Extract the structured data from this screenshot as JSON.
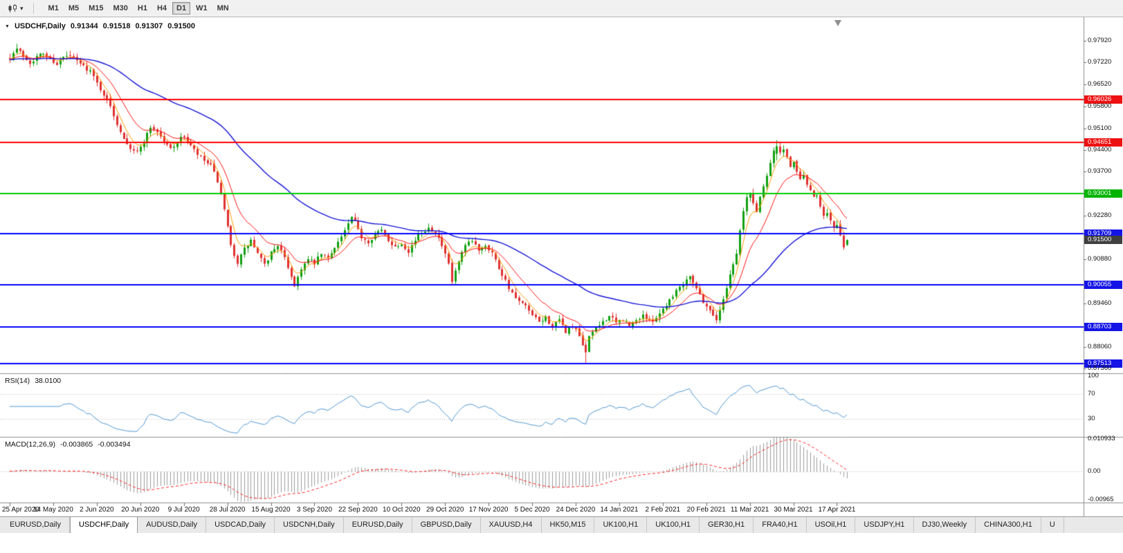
{
  "toolbar": {
    "timeframes": [
      {
        "label": "M1",
        "active": false
      },
      {
        "label": "M5",
        "active": false
      },
      {
        "label": "M15",
        "active": false
      },
      {
        "label": "M30",
        "active": false
      },
      {
        "label": "H1",
        "active": false
      },
      {
        "label": "H4",
        "active": false
      },
      {
        "label": "D1",
        "active": true
      },
      {
        "label": "W1",
        "active": false
      },
      {
        "label": "MN",
        "active": false
      }
    ]
  },
  "chart": {
    "title": {
      "symbol": "USDCHF,Daily",
      "open": "0.91344",
      "high": "0.91518",
      "low": "0.91307",
      "close": "0.91500"
    },
    "axis_labels": [
      {
        "text": "0.97920",
        "price": 0.9792,
        "type": "normal"
      },
      {
        "text": "0.97220",
        "price": 0.9722,
        "type": "normal"
      },
      {
        "text": "0.96520",
        "price": 0.9652,
        "type": "normal"
      },
      {
        "text": "0.96026",
        "price": 0.96026,
        "type": "red"
      },
      {
        "text": "0.95800",
        "price": 0.958,
        "type": "normal"
      },
      {
        "text": "0.95100",
        "price": 0.951,
        "type": "normal"
      },
      {
        "text": "0.94651",
        "price": 0.94651,
        "type": "red"
      },
      {
        "text": "0.94400",
        "price": 0.944,
        "type": "normal"
      },
      {
        "text": "0.93700",
        "price": 0.937,
        "type": "normal"
      },
      {
        "text": "0.93001",
        "price": 0.93001,
        "type": "green"
      },
      {
        "text": "0.92280",
        "price": 0.9228,
        "type": "normal"
      },
      {
        "text": "0.91709",
        "price": 0.91709,
        "type": "blue"
      },
      {
        "text": "0.91500",
        "price": 0.915,
        "type": "dark"
      },
      {
        "text": "0.90880",
        "price": 0.9088,
        "type": "normal"
      },
      {
        "text": "0.90055",
        "price": 0.90055,
        "type": "blue"
      },
      {
        "text": "0.89460",
        "price": 0.8946,
        "type": "normal"
      },
      {
        "text": "0.88703",
        "price": 0.88703,
        "type": "blue"
      },
      {
        "text": "0.88060",
        "price": 0.8806,
        "type": "normal"
      },
      {
        "text": "0.87513",
        "price": 0.87513,
        "type": "blue"
      },
      {
        "text": "0.87360",
        "price": 0.8736,
        "type": "normal"
      }
    ],
    "hlines": [
      {
        "price": 0.96026,
        "color": "#ff0000"
      },
      {
        "price": 0.94651,
        "color": "#ff0000"
      },
      {
        "price": 0.93001,
        "color": "#00cc00"
      },
      {
        "price": 0.91709,
        "color": "#0000ff"
      },
      {
        "price": 0.90055,
        "color": "#0000ff"
      },
      {
        "price": 0.88703,
        "color": "#0000ff"
      },
      {
        "price": 0.87513,
        "color": "#0000ff"
      }
    ]
  },
  "rsi": {
    "name": "RSI(14)",
    "value_text": "38.0100",
    "value": 38.01,
    "levels": [
      {
        "text": "100",
        "value": 100
      },
      {
        "text": "70",
        "value": 70
      },
      {
        "text": "30",
        "value": 30
      }
    ]
  },
  "macd": {
    "name": "MACD(12,26,9)",
    "main_text": "-0.003865",
    "signal_text": "-0.003494",
    "main_value": -0.003865,
    "signal_value": -0.003494,
    "levels": [
      {
        "text": "0.010933",
        "value": 0.010933
      },
      {
        "text": "0.00",
        "value": 0
      },
      {
        "text": "-0.00965",
        "value": -0.00965
      }
    ]
  },
  "chart_data": {
    "type": "candlestick",
    "symbol": "USDCHF",
    "timeframe": "Daily",
    "last_ohlc": {
      "open": 0.91344,
      "high": 0.91518,
      "low": 0.91307,
      "close": 0.915
    },
    "bars": 251,
    "x_labels": [
      "25 Apr 2020",
      "14 May 2020",
      "2 Jun 2020",
      "20 Jun 2020",
      "9 Jul 2020",
      "28 Jul 2020",
      "15 Aug 2020",
      "3 Sep 2020",
      "22 Sep 2020",
      "10 Oct 2020",
      "29 Oct 2020",
      "17 Nov 2020",
      "5 Dec 2020",
      "24 Dec 2020",
      "14 Jan 2021",
      "2 Feb 2021",
      "20 Feb 2021",
      "11 Mar 2021",
      "30 Mar 2021",
      "17 Apr 2021"
    ],
    "bars_per_label": 13,
    "close_anchors": [
      [
        0,
        0.9738
      ],
      [
        2,
        0.9766
      ],
      [
        4,
        0.9745
      ],
      [
        6,
        0.9722
      ],
      [
        8,
        0.974
      ],
      [
        10,
        0.9752
      ],
      [
        12,
        0.9734
      ],
      [
        14,
        0.9718
      ],
      [
        16,
        0.9738
      ],
      [
        18,
        0.9744
      ],
      [
        20,
        0.9726
      ],
      [
        22,
        0.971
      ],
      [
        24,
        0.9695
      ],
      [
        26,
        0.9655
      ],
      [
        28,
        0.962
      ],
      [
        30,
        0.958
      ],
      [
        32,
        0.9525
      ],
      [
        34,
        0.948
      ],
      [
        36,
        0.9448
      ],
      [
        38,
        0.9432
      ],
      [
        40,
        0.9468
      ],
      [
        42,
        0.9515
      ],
      [
        44,
        0.95
      ],
      [
        46,
        0.9465
      ],
      [
        48,
        0.9445
      ],
      [
        50,
        0.9468
      ],
      [
        52,
        0.9485
      ],
      [
        54,
        0.9452
      ],
      [
        56,
        0.9425
      ],
      [
        58,
        0.9405
      ],
      [
        60,
        0.9388
      ],
      [
        62,
        0.934
      ],
      [
        64,
        0.9245
      ],
      [
        66,
        0.913
      ],
      [
        68,
        0.9078
      ],
      [
        70,
        0.912
      ],
      [
        72,
        0.9148
      ],
      [
        74,
        0.9105
      ],
      [
        76,
        0.9068
      ],
      [
        78,
        0.911
      ],
      [
        80,
        0.9135
      ],
      [
        82,
        0.909
      ],
      [
        84,
        0.9035
      ],
      [
        85,
        0.9002
      ],
      [
        87,
        0.906
      ],
      [
        89,
        0.9085
      ],
      [
        91,
        0.9075
      ],
      [
        93,
        0.9105
      ],
      [
        95,
        0.909
      ],
      [
        97,
        0.913
      ],
      [
        99,
        0.916
      ],
      [
        101,
        0.92
      ],
      [
        102,
        0.9222
      ],
      [
        103,
        0.9205
      ],
      [
        105,
        0.916
      ],
      [
        107,
        0.9145
      ],
      [
        109,
        0.917
      ],
      [
        111,
        0.918
      ],
      [
        113,
        0.915
      ],
      [
        115,
        0.9128
      ],
      [
        117,
        0.914
      ],
      [
        119,
        0.9115
      ],
      [
        121,
        0.915
      ],
      [
        123,
        0.9175
      ],
      [
        125,
        0.919
      ],
      [
        127,
        0.9178
      ],
      [
        129,
        0.913
      ],
      [
        131,
        0.907
      ],
      [
        132,
        0.9015
      ],
      [
        134,
        0.908
      ],
      [
        136,
        0.913
      ],
      [
        138,
        0.9145
      ],
      [
        140,
        0.912
      ],
      [
        142,
        0.9135
      ],
      [
        144,
        0.911
      ],
      [
        146,
        0.906
      ],
      [
        148,
        0.902
      ],
      [
        150,
        0.8975
      ],
      [
        152,
        0.895
      ],
      [
        154,
        0.8935
      ],
      [
        156,
        0.8905
      ],
      [
        158,
        0.8885
      ],
      [
        160,
        0.89
      ],
      [
        162,
        0.887
      ],
      [
        164,
        0.889
      ],
      [
        166,
        0.8855
      ],
      [
        168,
        0.8872
      ],
      [
        170,
        0.884
      ],
      [
        171,
        0.8805
      ],
      [
        172,
        0.879
      ],
      [
        173,
        0.8845
      ],
      [
        175,
        0.8862
      ],
      [
        177,
        0.8888
      ],
      [
        179,
        0.8905
      ],
      [
        181,
        0.8882
      ],
      [
        183,
        0.8895
      ],
      [
        185,
        0.8872
      ],
      [
        187,
        0.889
      ],
      [
        189,
        0.891
      ],
      [
        191,
        0.8886
      ],
      [
        193,
        0.8902
      ],
      [
        195,
        0.8928
      ],
      [
        197,
        0.8958
      ],
      [
        199,
        0.8988
      ],
      [
        201,
        0.9012
      ],
      [
        203,
        0.9038
      ],
      [
        205,
        0.8995
      ],
      [
        207,
        0.8952
      ],
      [
        209,
        0.8922
      ],
      [
        211,
        0.8896
      ],
      [
        212,
        0.892
      ],
      [
        214,
        0.9
      ],
      [
        215,
        0.9042
      ],
      [
        216,
        0.9072
      ],
      [
        217,
        0.9108
      ],
      [
        218,
        0.918
      ],
      [
        219,
        0.9242
      ],
      [
        220,
        0.9285
      ],
      [
        221,
        0.93
      ],
      [
        222,
        0.9268
      ],
      [
        223,
        0.9242
      ],
      [
        224,
        0.929
      ],
      [
        225,
        0.9322
      ],
      [
        226,
        0.9362
      ],
      [
        227,
        0.9402
      ],
      [
        228,
        0.944
      ],
      [
        229,
        0.9452
      ],
      [
        230,
        0.9428
      ],
      [
        231,
        0.9445
      ],
      [
        232,
        0.941
      ],
      [
        233,
        0.9382
      ],
      [
        234,
        0.9398
      ],
      [
        235,
        0.9375
      ],
      [
        236,
        0.9342
      ],
      [
        237,
        0.936
      ],
      [
        238,
        0.933
      ],
      [
        239,
        0.9305
      ],
      [
        240,
        0.9286
      ],
      [
        241,
        0.9296
      ],
      [
        242,
        0.9262
      ],
      [
        243,
        0.9232
      ],
      [
        244,
        0.9242
      ],
      [
        245,
        0.9212
      ],
      [
        246,
        0.9186
      ],
      [
        247,
        0.9196
      ],
      [
        248,
        0.9158
      ],
      [
        249,
        0.9132
      ],
      [
        250,
        0.915
      ]
    ],
    "pins": {
      "2": {
        "high": 0.9782
      },
      "85": {
        "low": 0.8998
      },
      "132": {
        "low": 0.9003
      },
      "172": {
        "open": 0.8812,
        "high": 0.8822,
        "low": 0.8752,
        "close": 0.8788
      },
      "229": {
        "open": 0.9428,
        "high": 0.9472,
        "low": 0.9406,
        "close": 0.9452
      },
      "250": {
        "open": 0.91344,
        "high": 0.91518,
        "low": 0.91307,
        "close": 0.915
      }
    },
    "indicators": {
      "ma": [
        {
          "period": 5,
          "color": "#ff9c00",
          "width": 1
        },
        {
          "period": 13,
          "color": "#ff1111",
          "width": 1
        },
        {
          "period": 55,
          "color": "#1313d8",
          "width": 1.4
        }
      ],
      "rsi_period": 14,
      "macd": [
        12,
        26,
        9
      ]
    }
  },
  "tabs": [
    {
      "label": "EURUSD,Daily",
      "active": false
    },
    {
      "label": "USDCHF,Daily",
      "active": true
    },
    {
      "label": "AUDUSD,Daily",
      "active": false
    },
    {
      "label": "USDCAD,Daily",
      "active": false
    },
    {
      "label": "USDCNH,Daily",
      "active": false
    },
    {
      "label": "EURUSD,Daily",
      "active": false
    },
    {
      "label": "GBPUSD,Daily",
      "active": false
    },
    {
      "label": "XAUUSD,H4",
      "active": false
    },
    {
      "label": "HK50,M15",
      "active": false
    },
    {
      "label": "UK100,H1",
      "active": false
    },
    {
      "label": "UK100,H1",
      "active": false
    },
    {
      "label": "GER30,H1",
      "active": false
    },
    {
      "label": "FRA40,H1",
      "active": false
    },
    {
      "label": "USOil,H1",
      "active": false
    },
    {
      "label": "USDJPY,H1",
      "active": false
    },
    {
      "label": "DJ30,Weekly",
      "active": false
    },
    {
      "label": "CHINA300,H1",
      "active": false
    },
    {
      "label": "U",
      "active": false
    }
  ],
  "colors": {
    "candle_up": "#10a010",
    "candle_down": "#e03030",
    "rsi_line": "#4f96d2",
    "macd_hist": "#9c9c9c",
    "macd_signal": "#ff2020",
    "tags": {
      "red": "#ee1111",
      "green": "#00b400",
      "blue": "#1414e6",
      "dark": "#3f3f3f"
    }
  }
}
